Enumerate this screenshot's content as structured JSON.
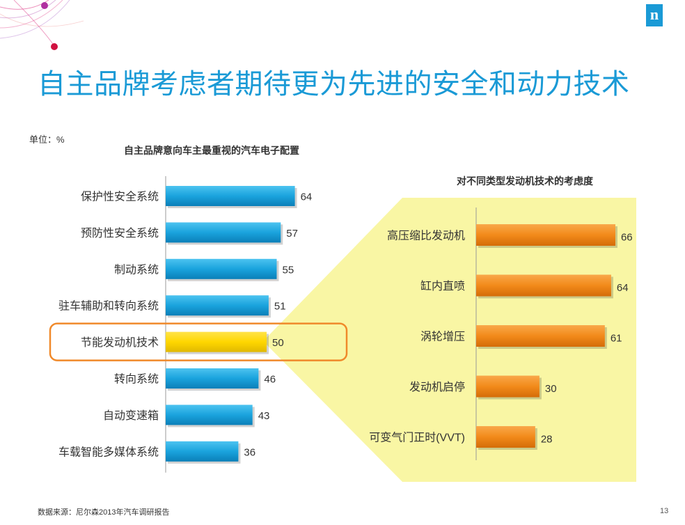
{
  "header": {
    "title": "自主品牌考虑者期待更为先进的安全和动力技术",
    "logo_letter": "n"
  },
  "unit_label": "单位：%",
  "footer": {
    "source": "数据来源：尼尔森2013年汽车调研报告",
    "page_number": "13"
  },
  "colors": {
    "title": "#1a9ad6",
    "left_bar": "#1aa3dd",
    "left_highlight_bar": "#ffd700",
    "right_bar": "#f28a1a",
    "highlight_box": "#f0892a",
    "callout_fill": "#f8f59a"
  },
  "chart_data": [
    {
      "type": "bar",
      "orientation": "horizontal",
      "title": "自主品牌意向车主最重视的汽车电子配置",
      "categories": [
        "保护性安全系统",
        "预防性安全系统",
        "制动系统",
        "驻车辅助和转向系统",
        "节能发动机技术",
        "转向系统",
        "自动变速箱",
        "车载智能多媒体系统"
      ],
      "values": [
        64,
        57,
        55,
        51,
        50,
        46,
        43,
        36
      ],
      "highlighted_category": "节能发动机技术",
      "unit": "%"
    },
    {
      "type": "bar",
      "orientation": "horizontal",
      "title": "对不同类型发动机技术的考虑度",
      "categories": [
        "高压缩比发动机",
        "缸内直喷",
        "涡轮增压",
        "发动机启停",
        "可变气门正时(VVT)"
      ],
      "values": [
        66,
        64,
        61,
        30,
        28
      ],
      "unit": "%"
    }
  ]
}
